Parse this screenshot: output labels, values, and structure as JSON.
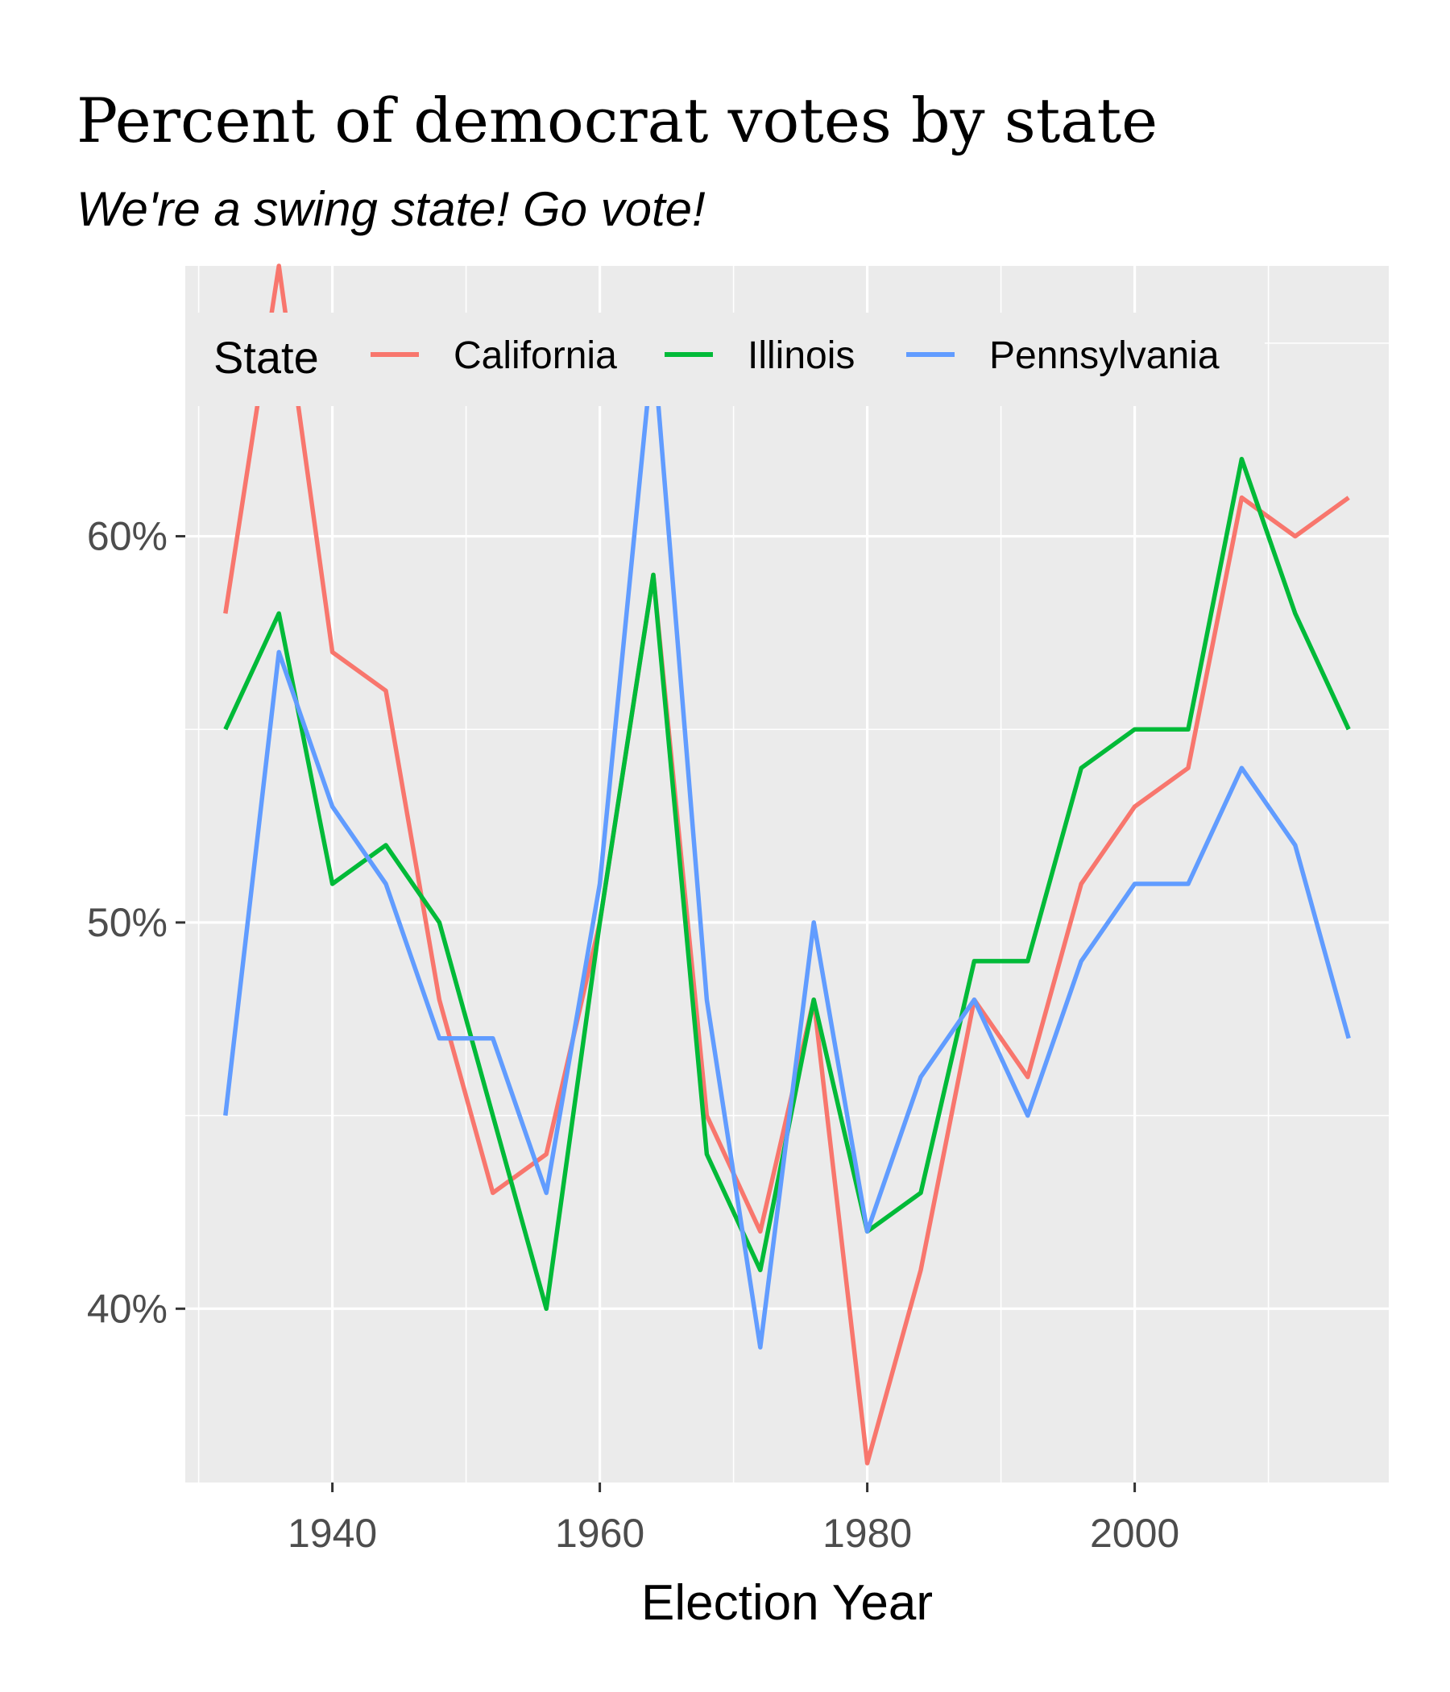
{
  "chart_data": {
    "type": "line",
    "title": "Percent of democrat votes by state",
    "subtitle": "We're a swing state! Go vote!",
    "xlabel": "Election Year",
    "ylabel": "",
    "x": [
      1932,
      1936,
      1940,
      1944,
      1948,
      1952,
      1956,
      1960,
      1964,
      1968,
      1972,
      1976,
      1980,
      1984,
      1988,
      1992,
      1996,
      2000,
      2004,
      2008,
      2012,
      2016
    ],
    "xlim": [
      1929,
      2019
    ],
    "ylim": [
      35.5,
      67
    ],
    "x_ticks": [
      1940,
      1960,
      1980,
      2000
    ],
    "x_tick_labels": [
      "1940",
      "1960",
      "1980",
      "2000"
    ],
    "y_ticks": [
      40,
      50,
      60
    ],
    "y_tick_labels": [
      "40%",
      "50%",
      "60%"
    ],
    "grid": true,
    "legend_title": "State",
    "legend_position": "top-inside",
    "series": [
      {
        "name": "California",
        "color": "#F8766D",
        "values": [
          58,
          67,
          57,
          56,
          48,
          43,
          44,
          50,
          59,
          45,
          42,
          48,
          36,
          41,
          48,
          46,
          51,
          53,
          54,
          61,
          60,
          61
        ]
      },
      {
        "name": "Illinois",
        "color": "#00BA38",
        "values": [
          55,
          58,
          51,
          52,
          50,
          45,
          40,
          50,
          59,
          44,
          41,
          48,
          42,
          43,
          49,
          49,
          54,
          55,
          55,
          62,
          58,
          55
        ]
      },
      {
        "name": "Pennsylvania",
        "color": "#619CFF",
        "values": [
          45,
          57,
          53,
          51,
          47,
          47,
          43,
          51,
          65,
          48,
          39,
          50,
          42,
          46,
          48,
          45,
          49,
          51,
          51,
          54,
          52,
          47
        ]
      }
    ]
  }
}
